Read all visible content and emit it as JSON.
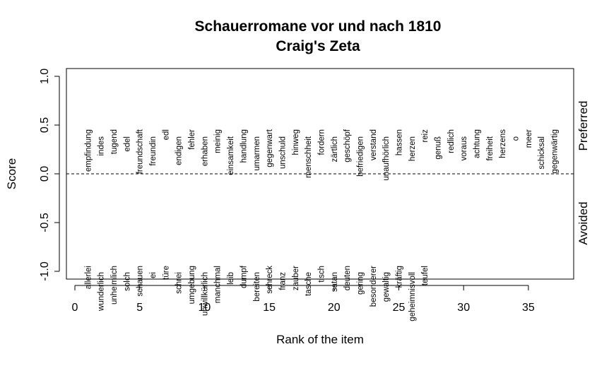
{
  "chart_data": {
    "type": "scatter",
    "title": "Schauerromane vor und nach 1810",
    "subtitle": "Craig's Zeta",
    "xlabel": "Rank of the item",
    "ylabel": "Score",
    "xlim": [
      0,
      38
    ],
    "ylim": [
      -1.1,
      1.1
    ],
    "xticks": [
      0,
      5,
      10,
      15,
      20,
      25,
      30,
      35
    ],
    "yticks": [
      -1.0,
      -0.5,
      0.0,
      0.5,
      1.0
    ],
    "reference_line": 0.0,
    "grid": false,
    "side_labels": {
      "top": "Preferred",
      "bottom": "Avoided"
    },
    "preferred": [
      "empfindung",
      "indes",
      "tugend",
      "edel",
      "freundschaft",
      "freundin",
      "edl",
      "endigen",
      "fehler",
      "erhaben",
      "meinig",
      "einsamkeit",
      "handlung",
      "umarmen",
      "gegenwart",
      "unschuld",
      "hinweg",
      "menschheit",
      "fordern",
      "zärtlich",
      "geschöpf",
      "befriedigen",
      "verstand",
      "unaufhörlich",
      "hassen",
      "herzen",
      "reiz",
      "genuß",
      "redlich",
      "voraus",
      "achtung",
      "freiheit",
      "herzens",
      "o",
      "meer",
      "schicksal",
      "gegenwärtig"
    ],
    "avoided": [
      "allerlei",
      "wunderlich",
      "unheimlich",
      "solch",
      "schauen",
      "ei",
      "türe",
      "schrei",
      "umgebung",
      "unwillkürlich",
      "manchmal",
      "leib",
      "dumpf",
      "bereiten",
      "schreck",
      "franz",
      "zauber",
      "tasche",
      "tisch",
      "satan",
      "deuten",
      "gering",
      "besonderer",
      "gewaltig",
      "kräftig",
      "geheimnisvoll",
      "teufel"
    ]
  }
}
